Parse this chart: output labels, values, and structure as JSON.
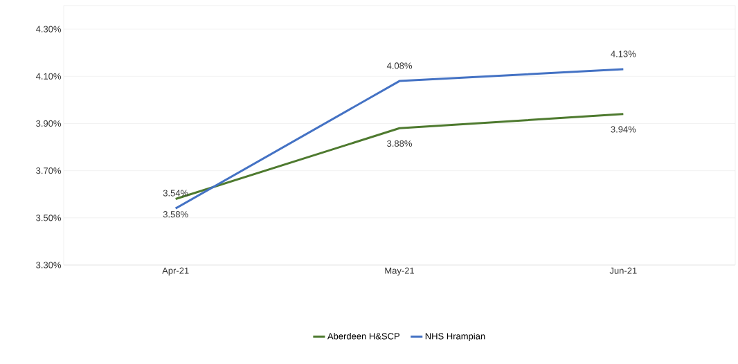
{
  "chart_data": {
    "type": "line",
    "categories": [
      "Apr-21",
      "May-21",
      "Jun-21"
    ],
    "series": [
      {
        "name": "Aberdeen H&SCP",
        "color": "#4e7a2f",
        "values": [
          3.58,
          3.88,
          3.94
        ],
        "value_labels": [
          "3.58%",
          "3.88%",
          "3.94%"
        ]
      },
      {
        "name": "NHS Hrampian",
        "color": "#4472c4",
        "values": [
          3.54,
          4.08,
          4.13
        ],
        "value_labels": [
          "3.54%",
          "4.08%",
          "4.13%"
        ]
      }
    ],
    "ylim": [
      3.3,
      4.4
    ],
    "yticks": [
      {
        "value": 3.3,
        "label": "3.30%"
      },
      {
        "value": 3.5,
        "label": "3.50%"
      },
      {
        "value": 3.7,
        "label": "3.70%"
      },
      {
        "value": 3.9,
        "label": "3.90%"
      },
      {
        "value": 4.1,
        "label": "4.10%"
      },
      {
        "value": 4.3,
        "label": "4.30%"
      }
    ],
    "grid": "y",
    "legend": "bottom",
    "marker": "none",
    "line_style": "solid"
  }
}
